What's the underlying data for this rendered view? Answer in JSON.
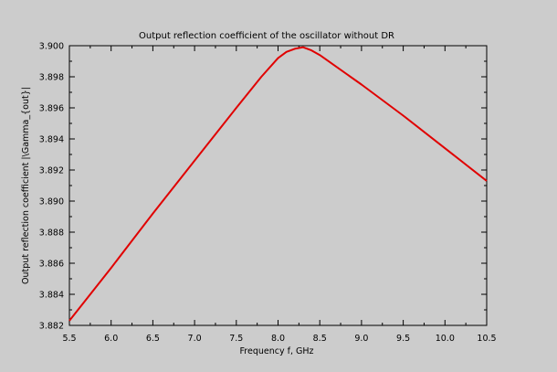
{
  "chart_data": {
    "type": "line",
    "title": "Output reflection coefficient of the oscillator without DR",
    "xlabel": "Frequency f, GHz",
    "ylabel": "Output reflection coefficient |\\Gamma_{out}|",
    "xlim": [
      5.5,
      10.5
    ],
    "ylim": [
      3.882,
      3.9
    ],
    "x_ticks": [
      "5.5",
      "6.0",
      "6.5",
      "7.0",
      "7.5",
      "8.0",
      "8.5",
      "9.0",
      "9.5",
      "10.0",
      "10.5"
    ],
    "y_ticks": [
      "3.882",
      "3.884",
      "3.886",
      "3.888",
      "3.890",
      "3.892",
      "3.894",
      "3.896",
      "3.898",
      "3.900"
    ],
    "grid": false,
    "series": [
      {
        "color": "#e00000",
        "x": [
          5.5,
          6.0,
          6.5,
          7.0,
          7.5,
          7.8,
          8.0,
          8.1,
          8.2,
          8.3,
          8.4,
          8.5,
          9.0,
          9.5,
          10.0,
          10.5
        ],
        "y": [
          3.8823,
          3.8857,
          3.8892,
          3.8926,
          3.896,
          3.898,
          3.8992,
          3.8996,
          3.8998,
          3.8999,
          3.8997,
          3.8994,
          3.8975,
          3.8955,
          3.8934,
          3.8913
        ]
      }
    ]
  }
}
